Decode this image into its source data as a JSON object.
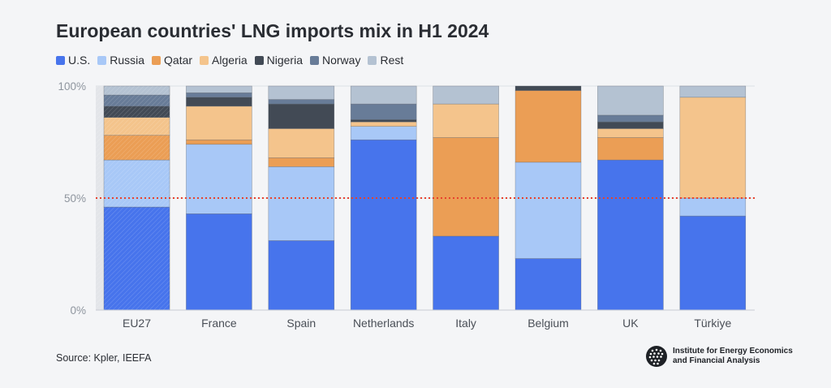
{
  "header": {
    "title": "European countries' LNG imports mix in H1 2024"
  },
  "footer": {
    "source": "Source: Kpler, IEEFA",
    "logo_line1": "Institute for Energy Economics",
    "logo_line2": "and Financial Analysis"
  },
  "chart_data": {
    "type": "bar",
    "stacked": true,
    "title": "European countries' LNG imports mix in H1 2024",
    "xlabel": "",
    "ylabel": "",
    "ylim": [
      0,
      100
    ],
    "yticks": [
      0,
      50,
      100
    ],
    "ytick_labels": [
      "0%",
      "50%",
      "100%"
    ],
    "reference_line": {
      "value": 50,
      "style": "dotted",
      "color": "#e8412d"
    },
    "categories": [
      "EU27",
      "France",
      "Spain",
      "Netherlands",
      "Italy",
      "Belgium",
      "UK",
      "Türkiye"
    ],
    "series": [
      {
        "name": "U.S.",
        "color": "#4774ec",
        "values": [
          46,
          43,
          31,
          76,
          33,
          23,
          67,
          42
        ]
      },
      {
        "name": "Russia",
        "color": "#a8c8f7",
        "values": [
          21,
          31,
          33,
          6,
          0,
          43,
          0,
          8
        ]
      },
      {
        "name": "Qatar",
        "color": "#eb9e55",
        "values": [
          11,
          2,
          4,
          0,
          44,
          32,
          10,
          0
        ]
      },
      {
        "name": "Algeria",
        "color": "#f4c48c",
        "values": [
          8,
          15,
          13,
          2,
          15,
          0,
          4,
          45
        ]
      },
      {
        "name": "Nigeria",
        "color": "#424a55",
        "values": [
          5,
          4,
          11,
          1,
          0,
          2,
          3,
          0
        ]
      },
      {
        "name": "Norway",
        "color": "#687c98",
        "values": [
          5,
          2,
          2,
          7,
          0,
          0,
          3,
          0
        ]
      },
      {
        "name": "Rest",
        "color": "#b4c2d2",
        "values": [
          4,
          3,
          6,
          8,
          8,
          0,
          13,
          5
        ]
      }
    ],
    "highlighted_category": "EU27",
    "legend_position": "top-left",
    "grid": true
  }
}
